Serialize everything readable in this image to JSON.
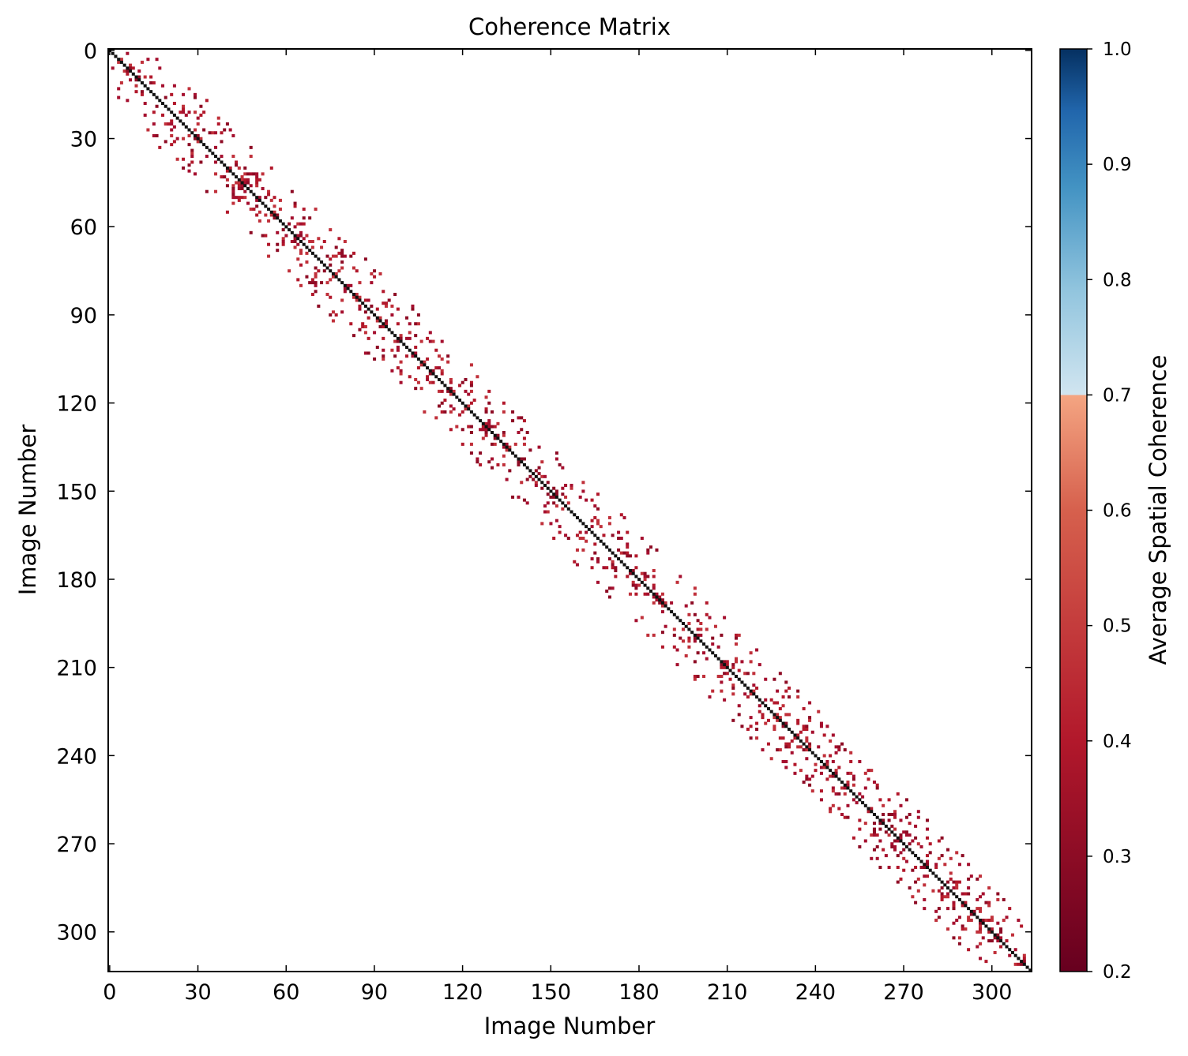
{
  "chart_data": {
    "type": "heatmap",
    "title": "Coherence Matrix",
    "xlabel": "Image Number",
    "ylabel": "Image Number",
    "n_images": 314,
    "xticks": [
      0,
      30,
      60,
      90,
      120,
      150,
      180,
      210,
      240,
      270,
      300
    ],
    "yticks": [
      0,
      30,
      60,
      90,
      120,
      150,
      180,
      210,
      240,
      270,
      300
    ],
    "diagonal_value": 1.0,
    "colorbar": {
      "label": "Average Spatial Coherence",
      "range": [
        0.2,
        1.0
      ],
      "ticks": [
        "0.2",
        "0.3",
        "0.4",
        "0.5",
        "0.6",
        "0.7",
        "0.8",
        "0.9",
        "1.0"
      ],
      "threshold": 0.7,
      "colormap": "RdBu",
      "colors_low_to_high": [
        "#67001f",
        "#b2182b",
        "#d6604d",
        "#f4a582",
        "#d1e5f0",
        "#92c5de",
        "#4393c3",
        "#2166ac",
        "#053061"
      ]
    },
    "off_diagonal_band": {
      "description": "sparse low-coherence pairs near the diagonal",
      "typical_value_range": [
        0.25,
        0.45
      ],
      "band_half_width_images": 16,
      "colors": [
        "#b2182b",
        "#a50f2e",
        "#c0303a",
        "#8e0b24"
      ]
    }
  }
}
